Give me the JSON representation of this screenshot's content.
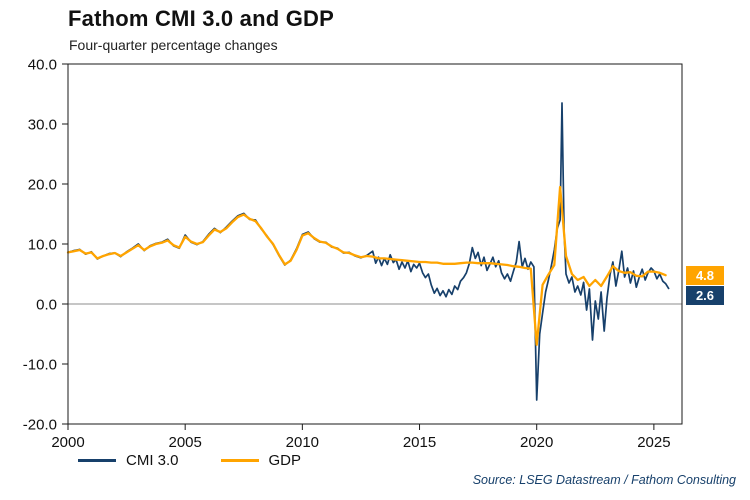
{
  "chart_data": {
    "type": "line",
    "title": "Fathom CMI 3.0 and GDP",
    "subtitle": "Four-quarter percentage changes",
    "source": "Source: LSEG Datastream / Fathom Consulting",
    "xlim": [
      2000,
      2026.2
    ],
    "ylim": [
      -20,
      40
    ],
    "x_ticks": [
      2000,
      2005,
      2010,
      2015,
      2020,
      2025
    ],
    "x_tick_labels": [
      "2000",
      "2005",
      "2010",
      "2015",
      "2020",
      "2025"
    ],
    "y_ticks": [
      40,
      30,
      20,
      10,
      0,
      -10,
      -20
    ],
    "y_tick_labels": [
      "40.0",
      "30.0",
      "20.0",
      "10.0",
      "0.0",
      "-10.0",
      "-20.0"
    ],
    "grid": false,
    "zero_line": 0,
    "frame_color": "#1a1a1a",
    "zero_line_color": "#8c8c8c",
    "legend_position": "bottom-left",
    "legend": [
      {
        "label": "CMI 3.0",
        "color": "#17406b"
      },
      {
        "label": "GDP",
        "color": "#ffa400"
      }
    ],
    "end_labels": [
      {
        "text": "4.8",
        "value": 4.8,
        "bg": "#ffa400"
      },
      {
        "text": "2.6",
        "value": 2.6,
        "bg": "#17406b"
      }
    ],
    "series": [
      {
        "name": "CMI 3.0",
        "color": "#17406b",
        "width": 1.7,
        "points": [
          [
            2000.0,
            8.6
          ],
          [
            2000.25,
            8.9
          ],
          [
            2000.5,
            9.1
          ],
          [
            2000.75,
            8.3
          ],
          [
            2001.0,
            8.7
          ],
          [
            2001.25,
            7.5
          ],
          [
            2001.5,
            8.0
          ],
          [
            2001.75,
            8.4
          ],
          [
            2002.0,
            8.5
          ],
          [
            2002.25,
            7.9
          ],
          [
            2002.5,
            8.7
          ],
          [
            2002.75,
            9.3
          ],
          [
            2003.0,
            10.0
          ],
          [
            2003.25,
            8.9
          ],
          [
            2003.5,
            9.7
          ],
          [
            2003.75,
            10.1
          ],
          [
            2004.0,
            10.3
          ],
          [
            2004.25,
            10.8
          ],
          [
            2004.5,
            9.7
          ],
          [
            2004.75,
            9.3
          ],
          [
            2005.0,
            11.5
          ],
          [
            2005.25,
            10.3
          ],
          [
            2005.5,
            9.9
          ],
          [
            2005.75,
            10.4
          ],
          [
            2006.0,
            11.6
          ],
          [
            2006.25,
            12.6
          ],
          [
            2006.5,
            11.9
          ],
          [
            2006.75,
            12.8
          ],
          [
            2007.0,
            13.8
          ],
          [
            2007.25,
            14.7
          ],
          [
            2007.5,
            15.1
          ],
          [
            2007.75,
            14.1
          ],
          [
            2008.0,
            14.0
          ],
          [
            2008.25,
            12.5
          ],
          [
            2008.5,
            11.3
          ],
          [
            2008.75,
            9.9
          ],
          [
            2009.0,
            8.1
          ],
          [
            2009.25,
            6.5
          ],
          [
            2009.5,
            7.3
          ],
          [
            2009.75,
            9.2
          ],
          [
            2010.0,
            11.6
          ],
          [
            2010.25,
            12.0
          ],
          [
            2010.5,
            10.9
          ],
          [
            2010.75,
            10.3
          ],
          [
            2011.0,
            10.3
          ],
          [
            2011.25,
            9.5
          ],
          [
            2011.5,
            9.3
          ],
          [
            2011.75,
            8.5
          ],
          [
            2012.0,
            8.6
          ],
          [
            2012.25,
            8.0
          ],
          [
            2012.5,
            7.7
          ],
          [
            2012.75,
            8.1
          ],
          [
            2013.0,
            8.8
          ],
          [
            2013.13,
            6.8
          ],
          [
            2013.25,
            7.8
          ],
          [
            2013.38,
            6.4
          ],
          [
            2013.5,
            7.6
          ],
          [
            2013.63,
            6.6
          ],
          [
            2013.75,
            8.2
          ],
          [
            2013.88,
            6.9
          ],
          [
            2014.0,
            7.4
          ],
          [
            2014.13,
            5.8
          ],
          [
            2014.25,
            7.0
          ],
          [
            2014.38,
            6.0
          ],
          [
            2014.5,
            7.2
          ],
          [
            2014.63,
            5.4
          ],
          [
            2014.75,
            6.6
          ],
          [
            2014.88,
            6.0
          ],
          [
            2015.0,
            6.8
          ],
          [
            2015.13,
            5.2
          ],
          [
            2015.25,
            4.4
          ],
          [
            2015.38,
            5.0
          ],
          [
            2015.5,
            3.2
          ],
          [
            2015.63,
            1.8
          ],
          [
            2015.75,
            2.6
          ],
          [
            2015.88,
            1.4
          ],
          [
            2016.0,
            2.2
          ],
          [
            2016.13,
            1.2
          ],
          [
            2016.25,
            2.4
          ],
          [
            2016.38,
            1.6
          ],
          [
            2016.5,
            3.0
          ],
          [
            2016.63,
            2.4
          ],
          [
            2016.75,
            3.8
          ],
          [
            2016.88,
            4.4
          ],
          [
            2017.0,
            5.2
          ],
          [
            2017.13,
            6.8
          ],
          [
            2017.25,
            9.4
          ],
          [
            2017.38,
            7.6
          ],
          [
            2017.5,
            8.6
          ],
          [
            2017.63,
            6.4
          ],
          [
            2017.75,
            7.8
          ],
          [
            2017.88,
            5.6
          ],
          [
            2018.0,
            6.6
          ],
          [
            2018.13,
            7.8
          ],
          [
            2018.25,
            6.2
          ],
          [
            2018.38,
            7.2
          ],
          [
            2018.5,
            5.2
          ],
          [
            2018.63,
            4.2
          ],
          [
            2018.75,
            5.0
          ],
          [
            2018.88,
            3.8
          ],
          [
            2019.0,
            5.4
          ],
          [
            2019.13,
            7.0
          ],
          [
            2019.25,
            10.4
          ],
          [
            2019.38,
            6.2
          ],
          [
            2019.5,
            7.6
          ],
          [
            2019.63,
            5.8
          ],
          [
            2019.75,
            7.0
          ],
          [
            2019.88,
            6.2
          ],
          [
            2020.0,
            -16.0
          ],
          [
            2020.13,
            -5.0
          ],
          [
            2020.25,
            -1.5
          ],
          [
            2020.38,
            2.0
          ],
          [
            2020.5,
            4.0
          ],
          [
            2020.63,
            6.5
          ],
          [
            2020.75,
            9.0
          ],
          [
            2020.88,
            12.6
          ],
          [
            2021.0,
            14.0
          ],
          [
            2021.08,
            33.5
          ],
          [
            2021.17,
            12.0
          ],
          [
            2021.25,
            5.0
          ],
          [
            2021.38,
            3.5
          ],
          [
            2021.5,
            4.5
          ],
          [
            2021.63,
            2.0
          ],
          [
            2021.75,
            3.0
          ],
          [
            2021.88,
            1.5
          ],
          [
            2022.0,
            3.6
          ],
          [
            2022.13,
            -1.0
          ],
          [
            2022.25,
            2.5
          ],
          [
            2022.38,
            -6.0
          ],
          [
            2022.5,
            0.5
          ],
          [
            2022.63,
            -2.5
          ],
          [
            2022.75,
            2.0
          ],
          [
            2022.88,
            -4.5
          ],
          [
            2023.0,
            1.0
          ],
          [
            2023.13,
            5.0
          ],
          [
            2023.25,
            7.0
          ],
          [
            2023.38,
            3.0
          ],
          [
            2023.5,
            5.5
          ],
          [
            2023.63,
            8.8
          ],
          [
            2023.75,
            4.5
          ],
          [
            2023.88,
            6.0
          ],
          [
            2024.0,
            3.5
          ],
          [
            2024.13,
            5.5
          ],
          [
            2024.25,
            2.8
          ],
          [
            2024.38,
            4.5
          ],
          [
            2024.5,
            5.8
          ],
          [
            2024.63,
            4.0
          ],
          [
            2024.75,
            5.2
          ],
          [
            2024.88,
            6.0
          ],
          [
            2025.0,
            5.5
          ],
          [
            2025.13,
            4.2
          ],
          [
            2025.25,
            5.0
          ],
          [
            2025.38,
            3.8
          ],
          [
            2025.5,
            3.4
          ],
          [
            2025.63,
            2.6
          ]
        ]
      },
      {
        "name": "GDP",
        "color": "#ffa400",
        "width": 2.3,
        "points": [
          [
            2000.0,
            8.6
          ],
          [
            2000.25,
            8.8
          ],
          [
            2000.5,
            9.0
          ],
          [
            2000.75,
            8.4
          ],
          [
            2001.0,
            8.6
          ],
          [
            2001.25,
            7.6
          ],
          [
            2001.5,
            8.0
          ],
          [
            2001.75,
            8.3
          ],
          [
            2002.0,
            8.5
          ],
          [
            2002.25,
            8.0
          ],
          [
            2002.5,
            8.6
          ],
          [
            2002.75,
            9.2
          ],
          [
            2003.0,
            9.8
          ],
          [
            2003.25,
            9.0
          ],
          [
            2003.5,
            9.6
          ],
          [
            2003.75,
            10.0
          ],
          [
            2004.0,
            10.2
          ],
          [
            2004.25,
            10.6
          ],
          [
            2004.5,
            9.8
          ],
          [
            2004.75,
            9.4
          ],
          [
            2005.0,
            11.2
          ],
          [
            2005.25,
            10.4
          ],
          [
            2005.5,
            10.0
          ],
          [
            2005.75,
            10.3
          ],
          [
            2006.0,
            11.4
          ],
          [
            2006.25,
            12.4
          ],
          [
            2006.5,
            12.0
          ],
          [
            2006.75,
            12.6
          ],
          [
            2007.0,
            13.6
          ],
          [
            2007.25,
            14.5
          ],
          [
            2007.5,
            14.9
          ],
          [
            2007.75,
            14.2
          ],
          [
            2008.0,
            13.8
          ],
          [
            2008.25,
            12.6
          ],
          [
            2008.5,
            11.2
          ],
          [
            2008.75,
            10.0
          ],
          [
            2009.0,
            8.2
          ],
          [
            2009.25,
            6.6
          ],
          [
            2009.5,
            7.2
          ],
          [
            2009.75,
            9.0
          ],
          [
            2010.0,
            11.4
          ],
          [
            2010.25,
            11.8
          ],
          [
            2010.5,
            11.0
          ],
          [
            2010.75,
            10.4
          ],
          [
            2011.0,
            10.2
          ],
          [
            2011.25,
            9.6
          ],
          [
            2011.5,
            9.2
          ],
          [
            2011.75,
            8.6
          ],
          [
            2012.0,
            8.5
          ],
          [
            2012.25,
            8.1
          ],
          [
            2012.5,
            7.8
          ],
          [
            2012.75,
            8.0
          ],
          [
            2013.0,
            7.9
          ],
          [
            2013.25,
            7.6
          ],
          [
            2013.5,
            7.6
          ],
          [
            2013.75,
            7.5
          ],
          [
            2014.0,
            7.4
          ],
          [
            2014.25,
            7.3
          ],
          [
            2014.5,
            7.2
          ],
          [
            2014.75,
            7.1
          ],
          [
            2015.0,
            7.0
          ],
          [
            2015.25,
            7.0
          ],
          [
            2015.5,
            6.9
          ],
          [
            2015.75,
            6.9
          ],
          [
            2016.0,
            6.7
          ],
          [
            2016.25,
            6.7
          ],
          [
            2016.5,
            6.7
          ],
          [
            2016.75,
            6.8
          ],
          [
            2017.0,
            6.9
          ],
          [
            2017.25,
            6.9
          ],
          [
            2017.5,
            6.8
          ],
          [
            2017.75,
            6.8
          ],
          [
            2018.0,
            6.8
          ],
          [
            2018.25,
            6.7
          ],
          [
            2018.5,
            6.6
          ],
          [
            2018.75,
            6.5
          ],
          [
            2019.0,
            6.3
          ],
          [
            2019.25,
            6.2
          ],
          [
            2019.5,
            6.0
          ],
          [
            2019.75,
            5.9
          ],
          [
            2020.0,
            -6.8
          ],
          [
            2020.25,
            3.2
          ],
          [
            2020.5,
            4.9
          ],
          [
            2020.75,
            6.5
          ],
          [
            2021.0,
            19.5
          ],
          [
            2021.25,
            8.0
          ],
          [
            2021.5,
            5.0
          ],
          [
            2021.75,
            4.0
          ],
          [
            2022.0,
            4.5
          ],
          [
            2022.25,
            3.0
          ],
          [
            2022.5,
            4.0
          ],
          [
            2022.75,
            3.0
          ],
          [
            2023.0,
            4.6
          ],
          [
            2023.25,
            6.3
          ],
          [
            2023.5,
            5.5
          ],
          [
            2023.75,
            5.2
          ],
          [
            2024.0,
            5.3
          ],
          [
            2024.25,
            4.7
          ],
          [
            2024.5,
            4.6
          ],
          [
            2024.75,
            5.4
          ],
          [
            2025.0,
            5.4
          ],
          [
            2025.25,
            5.2
          ],
          [
            2025.5,
            4.8
          ]
        ]
      }
    ]
  }
}
